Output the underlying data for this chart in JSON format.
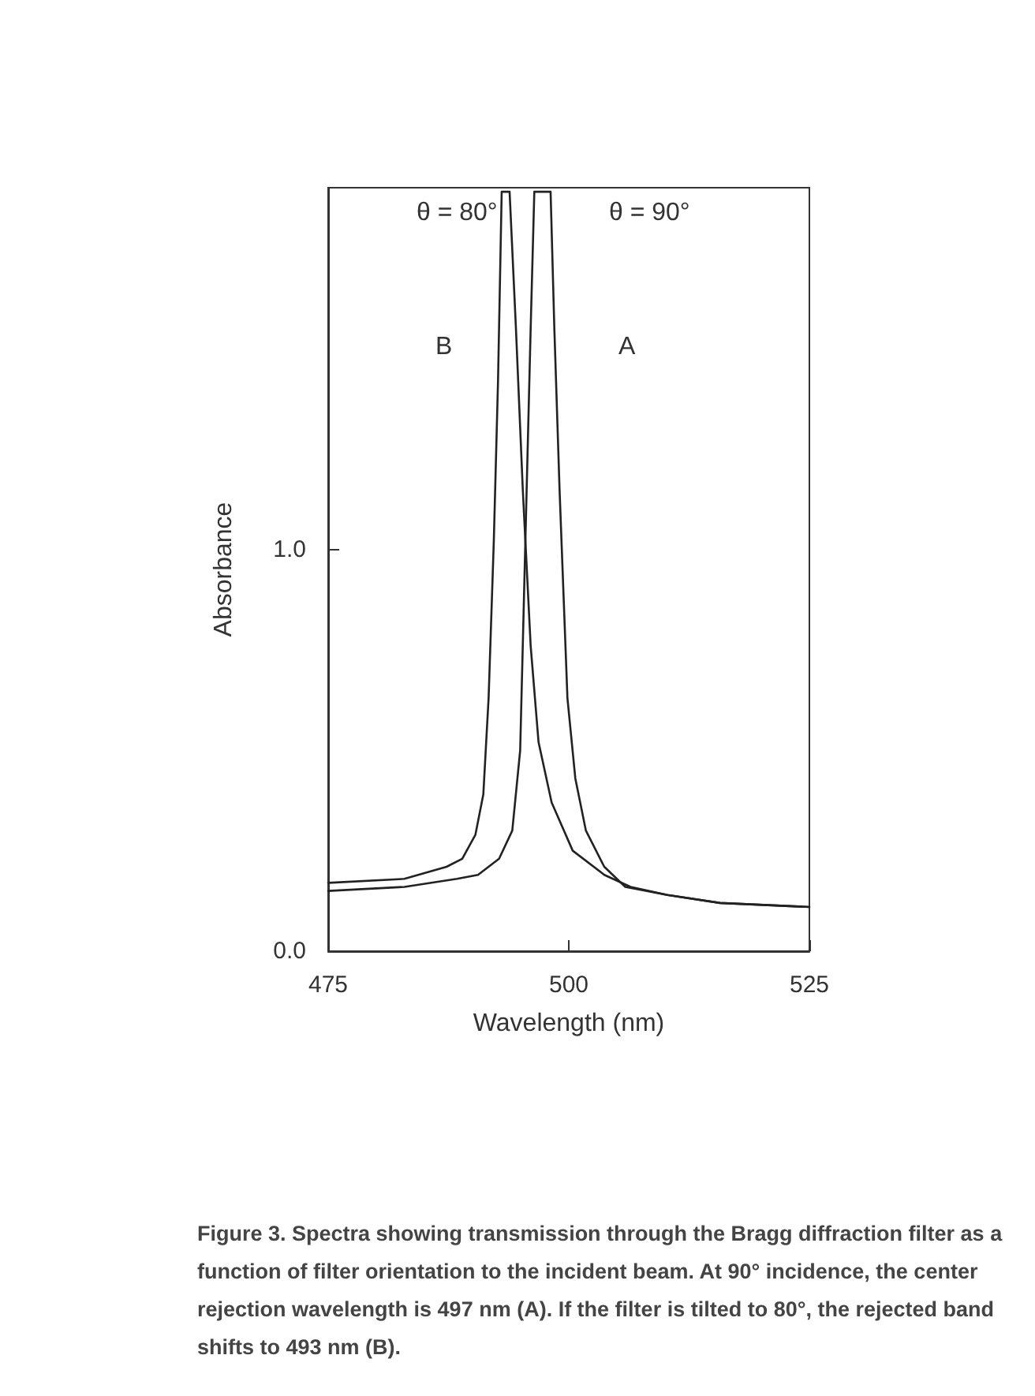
{
  "chart_data": {
    "type": "line",
    "xlabel": "Wavelength (nm)",
    "ylabel": "Absorbance",
    "xlim": [
      475,
      525
    ],
    "xticks": [
      475,
      500,
      525
    ],
    "ylim": [
      0,
      1.9
    ],
    "yticks": [
      {
        "value": 0,
        "label": "0.0"
      },
      {
        "value": 1,
        "label": "1.0"
      }
    ],
    "grid": false,
    "marker": "none",
    "line_style": "solid",
    "series": [
      {
        "color": "#222222",
        "x": [
          475,
          482.92,
          487.3,
          488.93,
          490.3,
          491.12,
          491.67,
          492.21,
          492.65,
          493.03,
          493.85,
          494.51,
          495.22,
          496.04,
          496.86,
          498.22,
          500.41,
          503.69,
          506.42,
          510.25,
          515.71,
          525
        ],
        "values": [
          0.17,
          0.18,
          0.21,
          0.23,
          0.29,
          0.39,
          0.63,
          1.02,
          1.42,
          1.89,
          1.89,
          1.55,
          1.15,
          0.76,
          0.52,
          0.37,
          0.25,
          0.19,
          0.16,
          0.14,
          0.12,
          0.11
        ]
      },
      {
        "color": "#222222",
        "x": [
          475,
          482.92,
          488.39,
          490.57,
          492.76,
          494.13,
          494.95,
          495.49,
          496.04,
          496.42,
          498.11,
          498.5,
          499.04,
          499.86,
          500.68,
          501.78,
          503.69,
          505.87,
          510.25,
          515.71,
          525
        ],
        "values": [
          0.15,
          0.16,
          0.18,
          0.19,
          0.23,
          0.3,
          0.5,
          1.02,
          1.55,
          1.89,
          1.89,
          1.55,
          1.15,
          0.63,
          0.43,
          0.3,
          0.21,
          0.16,
          0.14,
          0.12,
          0.11
        ]
      }
    ],
    "annotations": [
      "θ = 80°",
      "θ = 90°",
      "B",
      "A",
      "Figure 3. Spectra showing transmission through the Bragg diffraction filter as a function of filter orientation to the incident beam. At 90° incidence, the center rejection wavelength is 497 nm (A). If the filter is tilted to 80°, the rejected band shifts to 493 nm (B)."
    ]
  }
}
